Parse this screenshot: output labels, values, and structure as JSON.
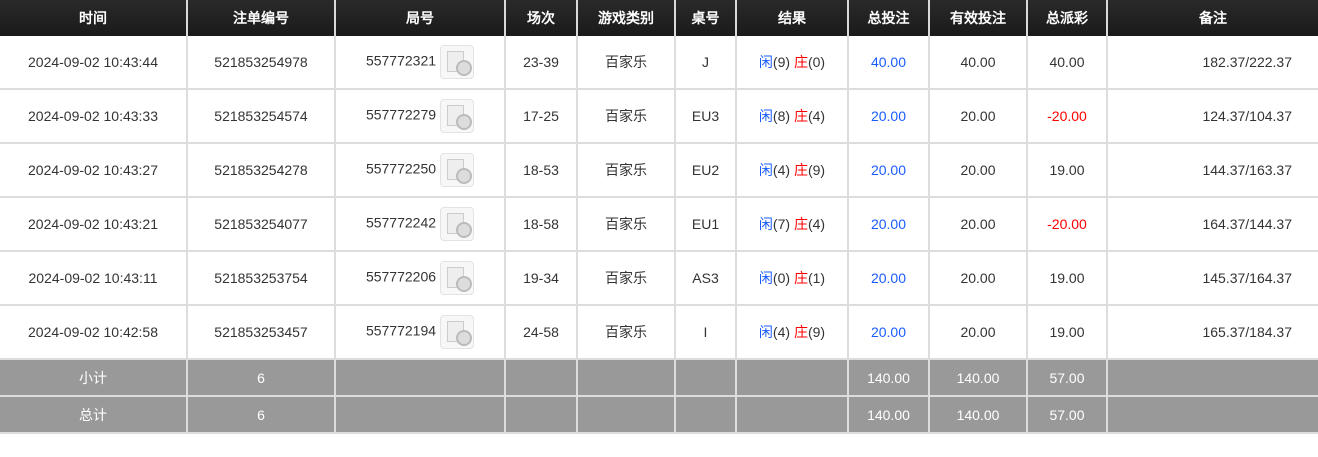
{
  "headers": [
    "时间",
    "注单编号",
    "局号",
    "场次",
    "游戏类别",
    "桌号",
    "结果",
    "总投注",
    "有效投注",
    "总派彩",
    "备注"
  ],
  "rows": [
    {
      "time": "2024-09-02 10:43:44",
      "bet_id": "521853254978",
      "round": "557772321",
      "shoe": "23-39",
      "game": "百家乐",
      "table": "J",
      "player": "闲",
      "player_score": "(9)",
      "banker": "庄",
      "banker_score": "(0)",
      "total_bet": "40.00",
      "valid_bet": "40.00",
      "payout": "40.00",
      "payout_negative": false,
      "note": "182.37/222.37"
    },
    {
      "time": "2024-09-02 10:43:33",
      "bet_id": "521853254574",
      "round": "557772279",
      "shoe": "17-25",
      "game": "百家乐",
      "table": "EU3",
      "player": "闲",
      "player_score": "(8)",
      "banker": "庄",
      "banker_score": "(4)",
      "total_bet": "20.00",
      "valid_bet": "20.00",
      "payout": "-20.00",
      "payout_negative": true,
      "note": "124.37/104.37"
    },
    {
      "time": "2024-09-02 10:43:27",
      "bet_id": "521853254278",
      "round": "557772250",
      "shoe": "18-53",
      "game": "百家乐",
      "table": "EU2",
      "player": "闲",
      "player_score": "(4)",
      "banker": "庄",
      "banker_score": "(9)",
      "total_bet": "20.00",
      "valid_bet": "20.00",
      "payout": "19.00",
      "payout_negative": false,
      "note": "144.37/163.37"
    },
    {
      "time": "2024-09-02 10:43:21",
      "bet_id": "521853254077",
      "round": "557772242",
      "shoe": "18-58",
      "game": "百家乐",
      "table": "EU1",
      "player": "闲",
      "player_score": "(7)",
      "banker": "庄",
      "banker_score": "(4)",
      "total_bet": "20.00",
      "valid_bet": "20.00",
      "payout": "-20.00",
      "payout_negative": true,
      "note": "164.37/144.37"
    },
    {
      "time": "2024-09-02 10:43:11",
      "bet_id": "521853253754",
      "round": "557772206",
      "shoe": "19-34",
      "game": "百家乐",
      "table": "AS3",
      "player": "闲",
      "player_score": "(0)",
      "banker": "庄",
      "banker_score": "(1)",
      "total_bet": "20.00",
      "valid_bet": "20.00",
      "payout": "19.00",
      "payout_negative": false,
      "note": "145.37/164.37"
    },
    {
      "time": "2024-09-02 10:42:58",
      "bet_id": "521853253457",
      "round": "557772194",
      "shoe": "24-58",
      "game": "百家乐",
      "table": "I",
      "player": "闲",
      "player_score": "(4)",
      "banker": "庄",
      "banker_score": "(9)",
      "total_bet": "20.00",
      "valid_bet": "20.00",
      "payout": "19.00",
      "payout_negative": false,
      "note": "165.37/184.37"
    }
  ],
  "summary": [
    {
      "label": "小计",
      "count": "6",
      "total_bet": "140.00",
      "valid_bet": "140.00",
      "payout": "57.00"
    },
    {
      "label": "总计",
      "count": "6",
      "total_bet": "140.00",
      "valid_bet": "140.00",
      "payout": "57.00"
    }
  ],
  "colors": {
    "header_bg": "#1a1a1a",
    "player": "#1a5cff",
    "banker": "#ff0000",
    "negative": "#ff0000",
    "summary_bg": "#999999"
  }
}
